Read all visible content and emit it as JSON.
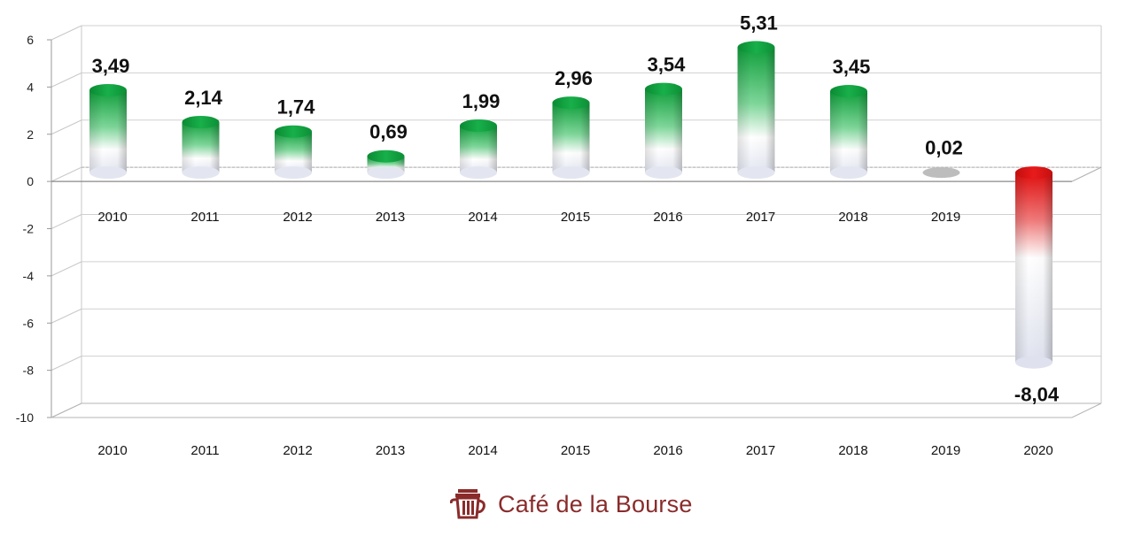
{
  "chart_data": {
    "type": "bar",
    "categories": [
      "2010",
      "2011",
      "2012",
      "2013",
      "2014",
      "2015",
      "2016",
      "2017",
      "2018",
      "2019",
      "2020"
    ],
    "values": [
      3.49,
      2.14,
      1.74,
      0.69,
      1.99,
      2.96,
      3.54,
      5.31,
      3.45,
      0.02,
      -8.04
    ],
    "value_labels": [
      "3,49",
      "2,14",
      "1,74",
      "0,69",
      "1,99",
      "2,96",
      "3,54",
      "5,31",
      "3,45",
      "0,02",
      "-8,04"
    ],
    "ylim": [
      -10,
      6
    ],
    "yticks": [
      6,
      4,
      2,
      0,
      -2,
      -4,
      -6,
      -8,
      -10
    ],
    "ytick_labels": [
      "6",
      "4",
      "2",
      "0",
      "-2",
      "-4",
      "-6",
      "-8",
      "-10"
    ],
    "title": "",
    "xlabel": "",
    "ylabel": "",
    "grid": true,
    "colors": {
      "positive": "#16a843",
      "negative": "#e01515",
      "zero": "#bdbdbd",
      "base": "#ffffff"
    }
  },
  "brand": {
    "name": "Café de la Bourse",
    "color": "#8a2b2b"
  }
}
